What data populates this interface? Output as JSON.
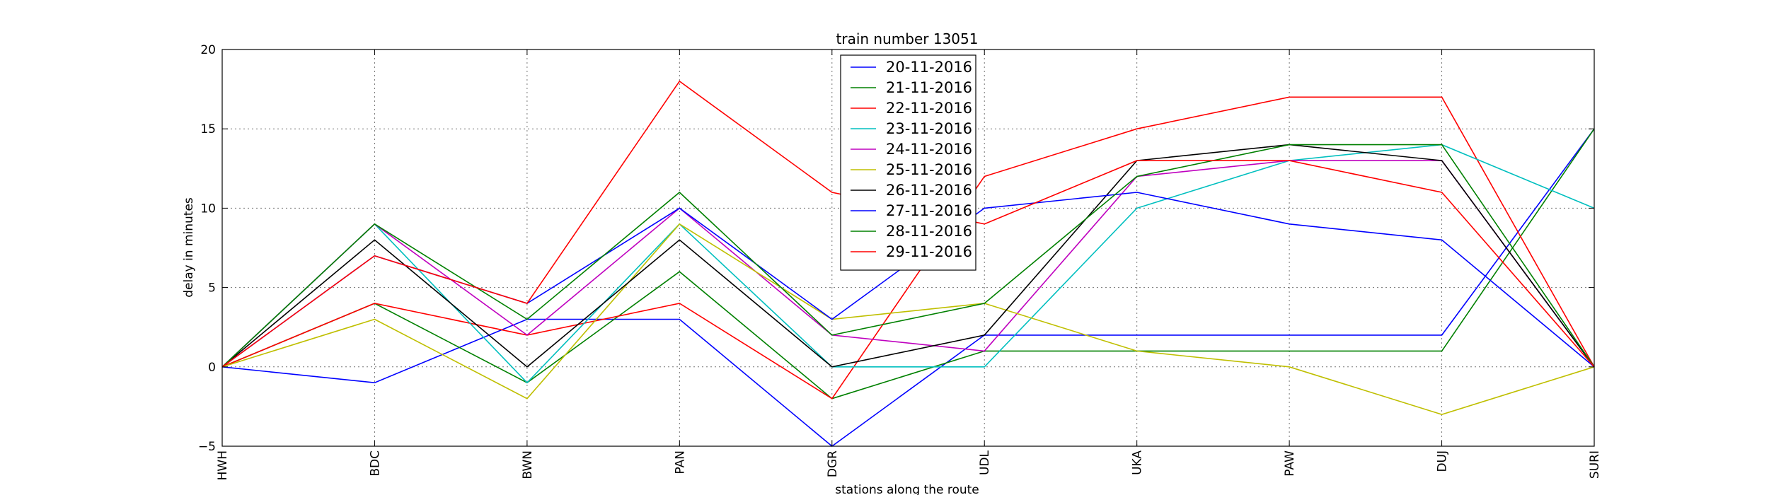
{
  "chart_data": {
    "type": "line",
    "title": "train number 13051",
    "xlabel": "stations along the route",
    "ylabel": "delay in minutes",
    "categories": [
      "HWH",
      "BDC",
      "BWN",
      "PAN",
      "DGR",
      "UDL",
      "UKA",
      "PAW",
      "DUJ",
      "SURI"
    ],
    "ylim": [
      -5,
      20
    ],
    "yticks": [
      -5,
      0,
      5,
      10,
      15,
      20
    ],
    "grid": true,
    "legend_position": "top-center",
    "series": [
      {
        "name": "20-11-2016",
        "color": "#0000ff",
        "values": [
          0,
          -1,
          3,
          3,
          -5,
          2,
          2,
          2,
          2,
          15
        ]
      },
      {
        "name": "21-11-2016",
        "color": "#008000",
        "values": [
          0,
          4,
          -1,
          6,
          -2,
          1,
          1,
          1,
          1,
          15
        ]
      },
      {
        "name": "22-11-2016",
        "color": "#ff0000",
        "values": [
          0,
          4,
          2,
          4,
          -2,
          12,
          15,
          17,
          17,
          0
        ]
      },
      {
        "name": "23-11-2016",
        "color": "#00bfbf",
        "values": [
          0,
          9,
          -1,
          9,
          0,
          0,
          10,
          13,
          14,
          10
        ]
      },
      {
        "name": "24-11-2016",
        "color": "#bf00bf",
        "values": [
          0,
          9,
          2,
          10,
          2,
          1,
          12,
          13,
          13,
          0
        ]
      },
      {
        "name": "25-11-2016",
        "color": "#bfbf00",
        "values": [
          0,
          3,
          -2,
          9,
          3,
          4,
          1,
          0,
          -3,
          0
        ]
      },
      {
        "name": "26-11-2016",
        "color": "#000000",
        "values": [
          0,
          8,
          0,
          8,
          0,
          2,
          13,
          14,
          13,
          0
        ]
      },
      {
        "name": "27-11-2016",
        "color": "#0000ff",
        "values": [
          0,
          7,
          4,
          10,
          3,
          10,
          11,
          9,
          8,
          0
        ]
      },
      {
        "name": "28-11-2016",
        "color": "#008000",
        "values": [
          0,
          9,
          3,
          11,
          2,
          4,
          12,
          14,
          14,
          0
        ]
      },
      {
        "name": "29-11-2016",
        "color": "#ff0000",
        "values": [
          0,
          7,
          4,
          18,
          11,
          9,
          13,
          13,
          11,
          0
        ]
      }
    ]
  }
}
